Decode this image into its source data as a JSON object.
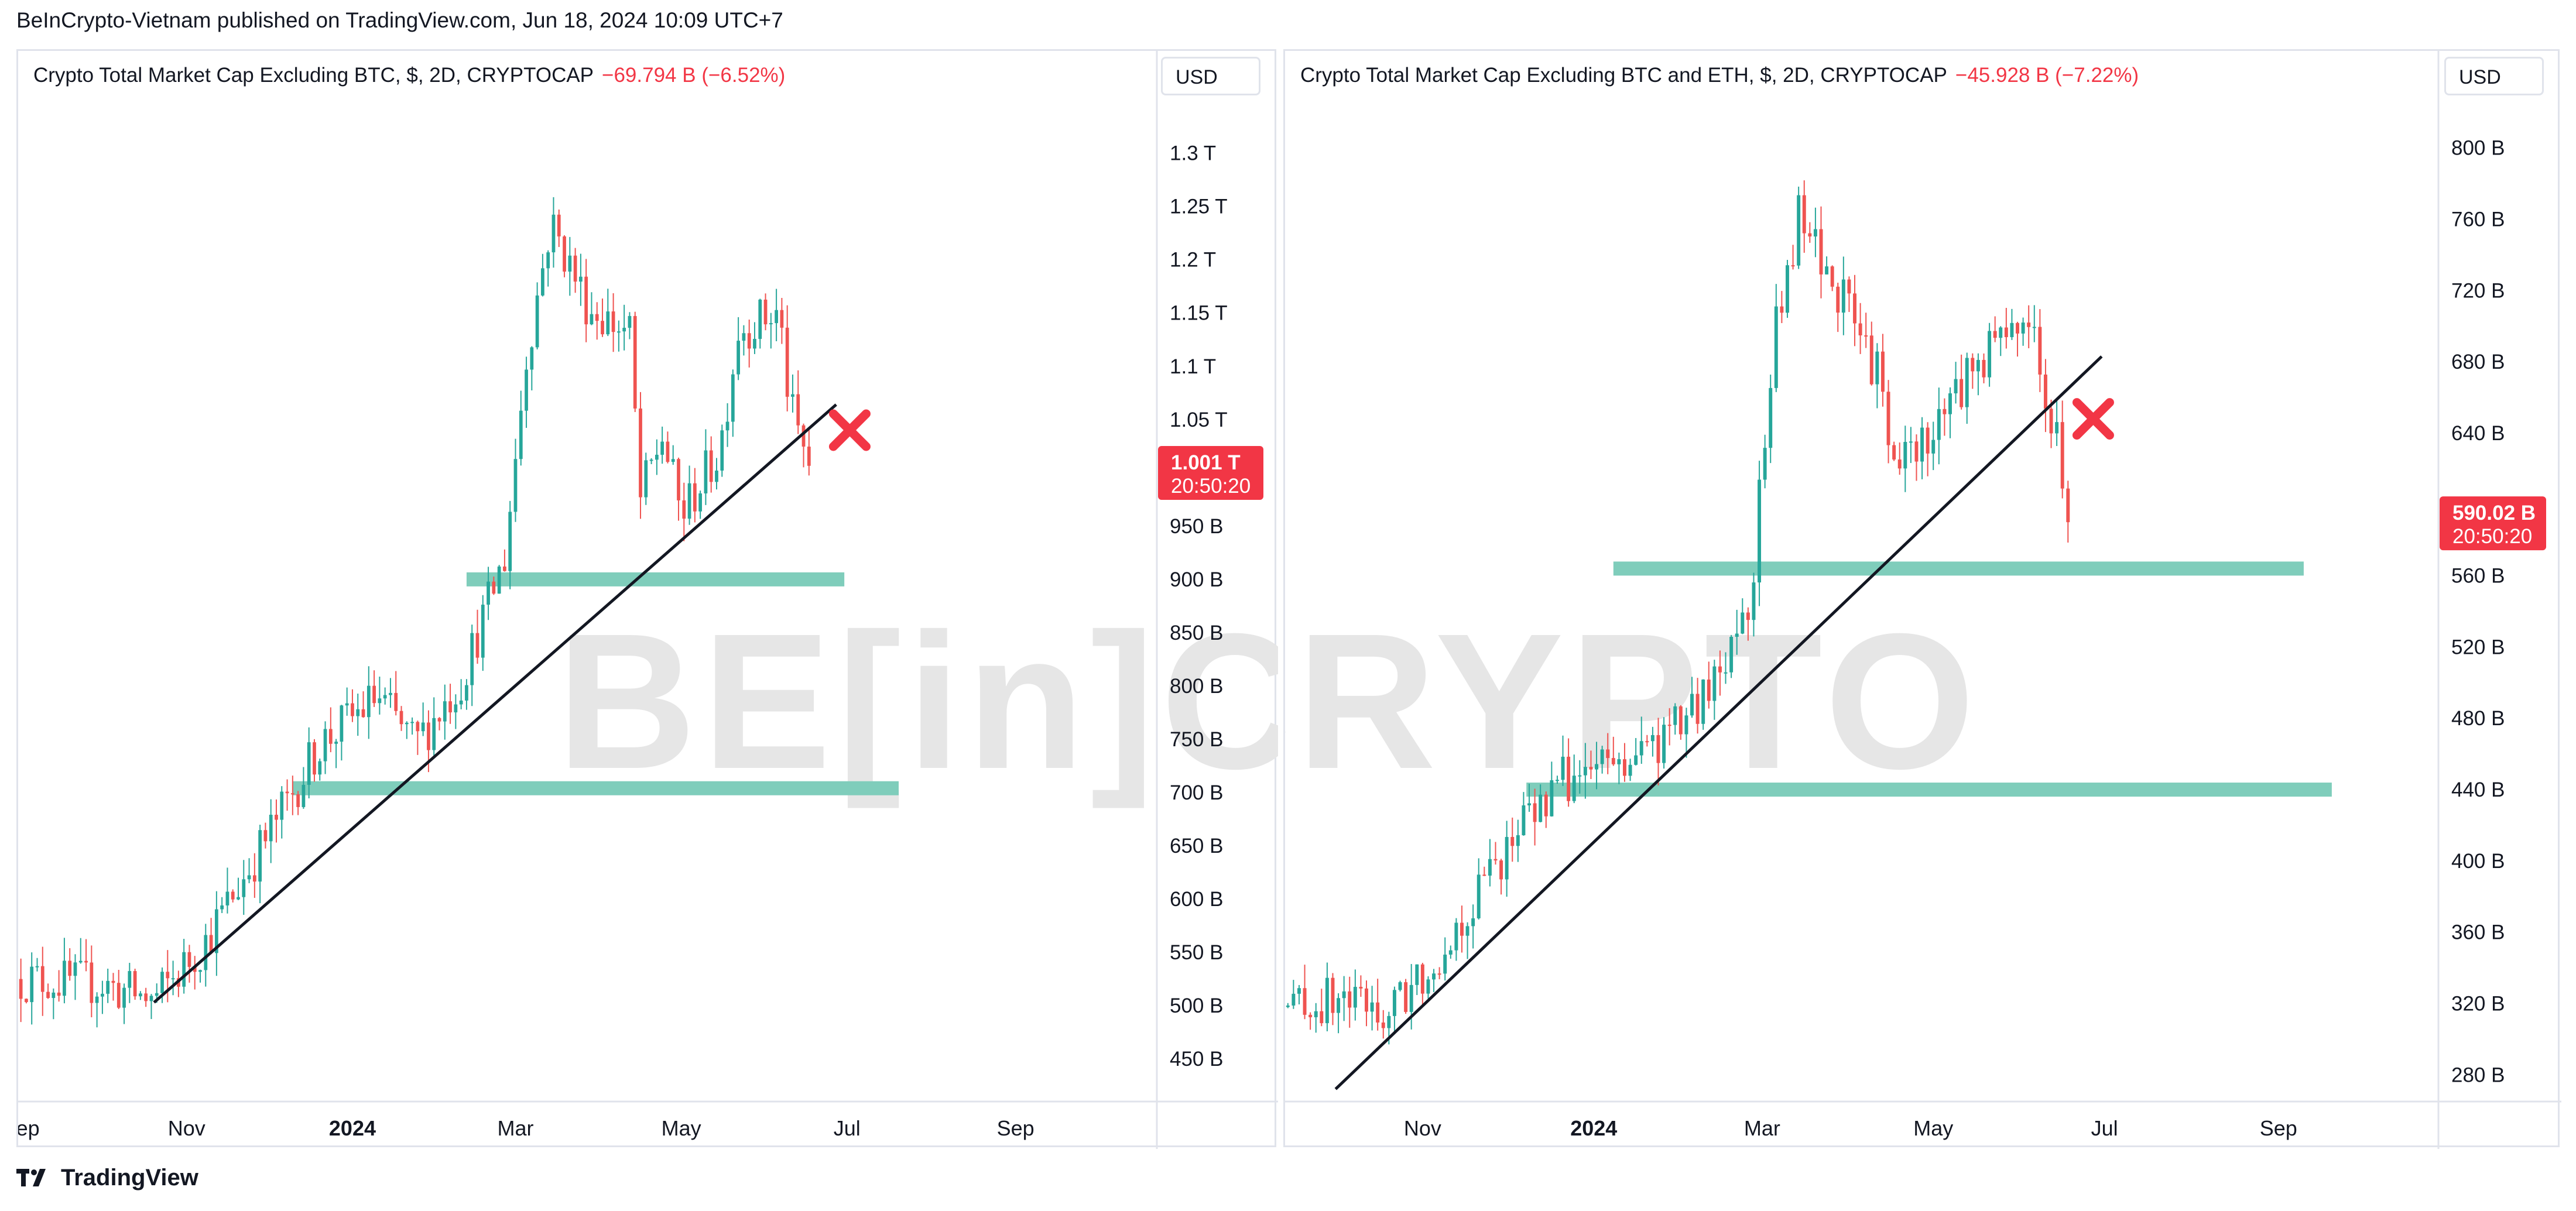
{
  "header": {
    "published_text": "BeInCrypto-Vietnam published on TradingView.com, Jun 18, 2024 10:09 UTC+7"
  },
  "footer": {
    "brand": "TradingView"
  },
  "watermark": "BE[in]CRYPTO",
  "colors": {
    "up": "#26a69a",
    "down": "#ef5350",
    "zone": "#7fcdbb",
    "trendline": "#131722",
    "cross": "#f23645",
    "price_tag": "#f23645"
  },
  "chart_data": [
    {
      "type": "candlestick",
      "title": "Crypto Total Market Cap Excluding BTC, $, 2D, CRYPTOCAP",
      "change": "−69.794 B (−6.52%)",
      "currency": "USD",
      "x_ticks": [
        "Sep",
        "Nov",
        "2024",
        "Mar",
        "May",
        "Jul",
        "Sep"
      ],
      "x_tick_dates": [
        "2023-09-01",
        "2023-11-01",
        "2024-01-01",
        "2024-03-01",
        "2024-05-01",
        "2024-07-01",
        "2024-09-01"
      ],
      "xlim": [
        "2023-08-31",
        "2024-10-23"
      ],
      "y_ticks": [
        "1.3 T",
        "1.25 T",
        "1.2 T",
        "1.15 T",
        "1.1 T",
        "1.05 T",
        "950 B",
        "900 B",
        "850 B",
        "800 B",
        "750 B",
        "700 B",
        "650 B",
        "600 B",
        "550 B",
        "500 B",
        "450 B"
      ],
      "y_tick_values": [
        1300,
        1250,
        1200,
        1150,
        1100,
        1050,
        950,
        900,
        850,
        800,
        750,
        700,
        650,
        600,
        550,
        500,
        450
      ],
      "y_unit": "B USD",
      "ylim": [
        410,
        1330
      ],
      "last_price": "1.001 T",
      "countdown": "20:50:20",
      "last_value": 1001,
      "close_path": [
        [
          "2023-09-01",
          525
        ],
        [
          "2023-10-01",
          520
        ],
        [
          "2023-10-20",
          505
        ],
        [
          "2023-11-08",
          560
        ],
        [
          "2023-12-01",
          660
        ],
        [
          "2023-12-20",
          745
        ],
        [
          "2024-01-10",
          790
        ],
        [
          "2024-01-24",
          745
        ],
        [
          "2024-02-10",
          805
        ],
        [
          "2024-02-26",
          920
        ],
        [
          "2024-03-05",
          1110
        ],
        [
          "2024-03-14",
          1235
        ],
        [
          "2024-03-28",
          1155
        ],
        [
          "2024-04-12",
          1130
        ],
        [
          "2024-04-16",
          975
        ],
        [
          "2024-04-24",
          1035
        ],
        [
          "2024-05-01",
          960
        ],
        [
          "2024-05-15",
          1020
        ],
        [
          "2024-05-22",
          1135
        ],
        [
          "2024-06-06",
          1150
        ],
        [
          "2024-06-10",
          1060
        ],
        [
          "2024-06-18",
          1001
        ]
      ],
      "support_zones": [
        {
          "from": "2024-02-12",
          "to": "2024-06-30",
          "value": 900
        },
        {
          "from": "2023-12-10",
          "to": "2024-07-20",
          "value": 704
        }
      ],
      "trendline": [
        [
          "2023-10-20",
          503
        ],
        [
          "2024-06-27",
          1064
        ]
      ],
      "cross_marker": [
        "2024-07-02",
        1040
      ]
    },
    {
      "type": "candlestick",
      "title": "Crypto Total Market Cap Excluding BTC and ETH, $, 2D, CRYPTOCAP",
      "change": "−45.928 B (−7.22%)",
      "currency": "USD",
      "x_ticks": [
        "Nov",
        "2024",
        "Mar",
        "May",
        "Jul",
        "Sep"
      ],
      "x_tick_dates": [
        "2023-11-01",
        "2024-01-01",
        "2024-03-01",
        "2024-05-01",
        "2024-07-01",
        "2024-09-01"
      ],
      "xlim": [
        "2023-09-13",
        "2024-10-28"
      ],
      "y_ticks": [
        "800 B",
        "760 B",
        "720 B",
        "680 B",
        "640 B",
        "600 B",
        "560 B",
        "520 B",
        "480 B",
        "440 B",
        "400 B",
        "360 B",
        "320 B",
        "280 B"
      ],
      "y_tick_values": [
        800,
        760,
        720,
        680,
        640,
        600,
        560,
        520,
        480,
        440,
        400,
        360,
        320,
        280
      ],
      "y_unit": "B USD",
      "ylim": [
        265,
        815
      ],
      "last_price": "590.02 B",
      "countdown": "20:50:20",
      "last_value": 590.02,
      "close_path": [
        [
          "2023-09-14",
          318
        ],
        [
          "2023-10-05",
          322
        ],
        [
          "2023-10-20",
          313
        ],
        [
          "2023-11-10",
          355
        ],
        [
          "2023-12-05",
          418
        ],
        [
          "2023-12-20",
          445
        ],
        [
          "2024-01-10",
          455
        ],
        [
          "2024-01-22",
          462
        ],
        [
          "2024-02-10",
          490
        ],
        [
          "2024-02-26",
          552
        ],
        [
          "2024-03-05",
          690
        ],
        [
          "2024-03-14",
          760
        ],
        [
          "2024-03-28",
          720
        ],
        [
          "2024-04-12",
          670
        ],
        [
          "2024-04-16",
          618
        ],
        [
          "2024-04-30",
          640
        ],
        [
          "2024-05-15",
          678
        ],
        [
          "2024-05-28",
          700
        ],
        [
          "2024-06-07",
          702
        ],
        [
          "2024-06-10",
          645
        ],
        [
          "2024-06-14",
          638
        ],
        [
          "2024-06-18",
          590
        ]
      ],
      "support_zones": [
        {
          "from": "2024-01-08",
          "to": "2024-09-10",
          "value": 564
        },
        {
          "from": "2023-12-08",
          "to": "2024-09-20",
          "value": 440
        }
      ],
      "trendline": [
        [
          "2023-10-01",
          272
        ],
        [
          "2024-06-30",
          683
        ]
      ],
      "cross_marker": [
        "2024-06-27",
        648
      ]
    }
  ]
}
